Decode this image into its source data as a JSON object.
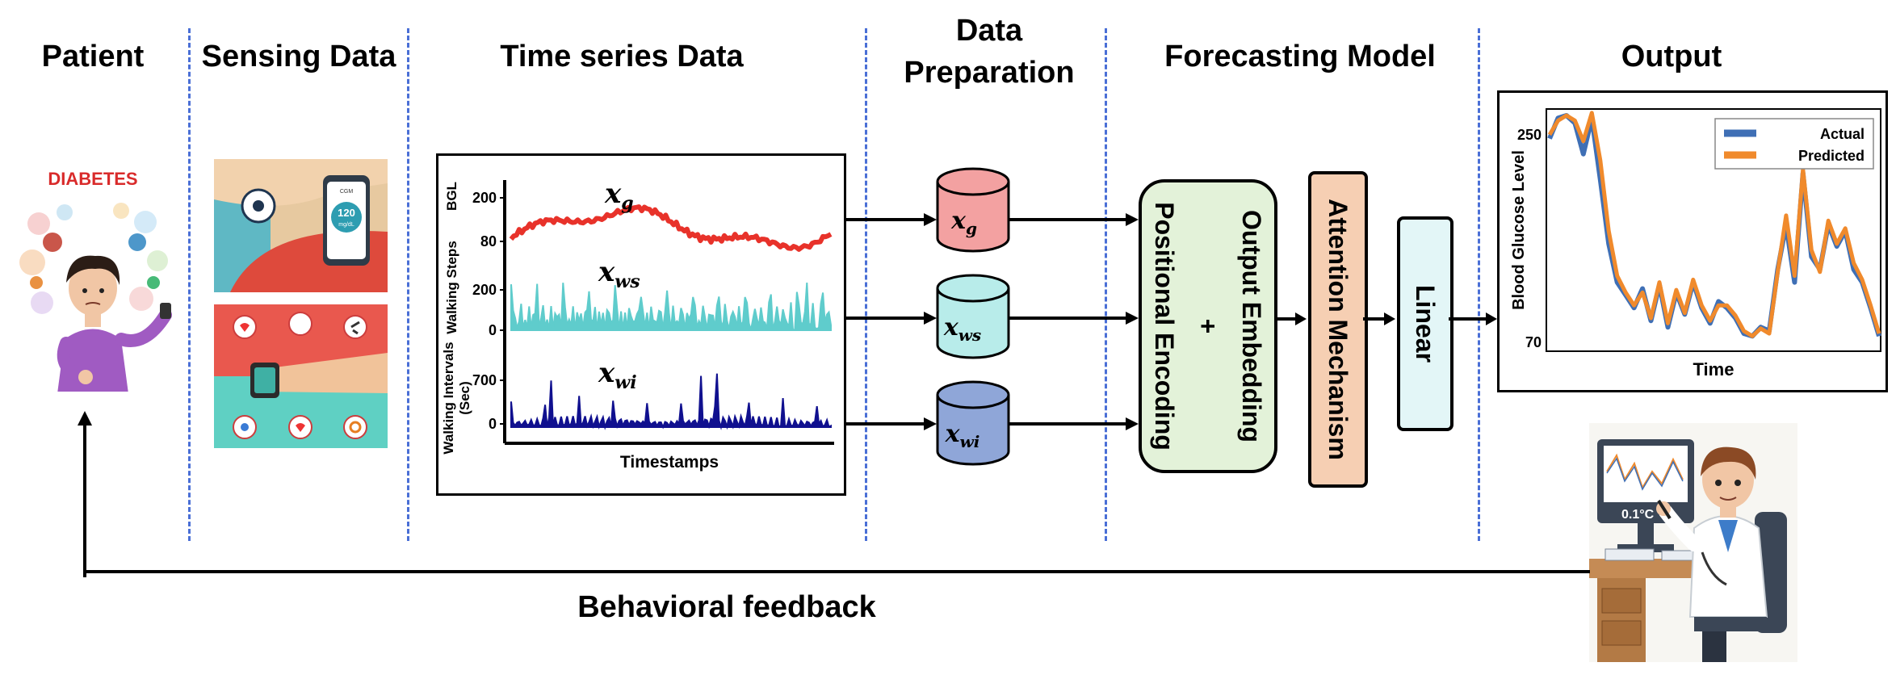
{
  "headers": {
    "patient": "Patient",
    "sensing": "Sensing Data",
    "timeseries": "Time series Data",
    "prep_line1": "Data",
    "prep_line2": "Preparation",
    "model": "Forecasting Model",
    "output": "Output"
  },
  "patient": {
    "badge": "DIABETES"
  },
  "sensing": {
    "phone_reading": "120",
    "phone_unit": "mg/dL",
    "cgm_label": "CGM"
  },
  "timeseries": {
    "xlabel": "Timestamps",
    "ylabel_bgl": "BGL",
    "ylabel_steps": "Walking Steps",
    "ylabel_intervals_1": "Walking Intervals",
    "ylabel_intervals_2": "(Sec)",
    "ticks_bgl": [
      "200",
      "80"
    ],
    "ticks_steps": [
      "200",
      "0"
    ],
    "ticks_intervals": [
      "700",
      "0"
    ],
    "var_g": "g",
    "var_ws": "ws",
    "var_wi": "wi",
    "var_base": "x",
    "colors": {
      "bgl": "#e8322a",
      "steps": "#5fcccc",
      "intervals": "#10108f"
    }
  },
  "preparation": {
    "cylinders": [
      {
        "sub": "g",
        "fill": "#f3a1a1"
      },
      {
        "sub": "ws",
        "fill": "#b8ecea"
      },
      {
        "sub": "wi",
        "fill": "#8fa6d8"
      }
    ]
  },
  "model": {
    "embedding_line1": "Output  Embedding",
    "embedding_line2": "+",
    "embedding_line3": "Positional Encoding",
    "attention": "Attention  Mechanism",
    "linear": "Linear",
    "colors": {
      "embedding": "#e3f2d9",
      "attention": "#f6cfb3",
      "linear": "#e3f6f7"
    }
  },
  "output_chart": {
    "ylabel": "Blood Glucose Level",
    "xlabel": "Time",
    "ytick_top": "250",
    "ytick_bottom": "70",
    "legend_actual": "Actual",
    "legend_predicted": "Predicted",
    "colors": {
      "actual": "#3f6fb5",
      "predicted": "#f08a2c"
    }
  },
  "chart_data": {
    "type": "line",
    "xlabel": "Time",
    "ylabel": "Blood Glucose Level",
    "ylim": [
      70,
      250
    ],
    "legend_placement": "top-right",
    "series": [
      {
        "name": "Actual",
        "values": [
          232,
          248,
          250,
          244,
          220,
          248,
          200,
          150,
          120,
          110,
          100,
          115,
          90,
          118,
          85,
          112,
          95,
          120,
          100,
          88,
          105,
          100,
          92,
          80,
          78,
          85,
          82,
          130,
          165,
          120,
          205,
          140,
          130,
          165,
          148,
          160,
          130,
          120,
          100,
          78
        ]
      },
      {
        "name": "Predicted",
        "values": [
          235,
          246,
          250,
          246,
          230,
          252,
          215,
          160,
          125,
          112,
          102,
          112,
          92,
          120,
          88,
          114,
          96,
          122,
          102,
          90,
          102,
          102,
          94,
          82,
          78,
          84,
          80,
          128,
          172,
          125,
          208,
          145,
          128,
          168,
          150,
          162,
          135,
          122,
          102,
          80
        ]
      }
    ]
  },
  "feedback": {
    "label": "Behavioral feedback"
  },
  "doctor": {
    "screen_reading": "0.1°C"
  }
}
